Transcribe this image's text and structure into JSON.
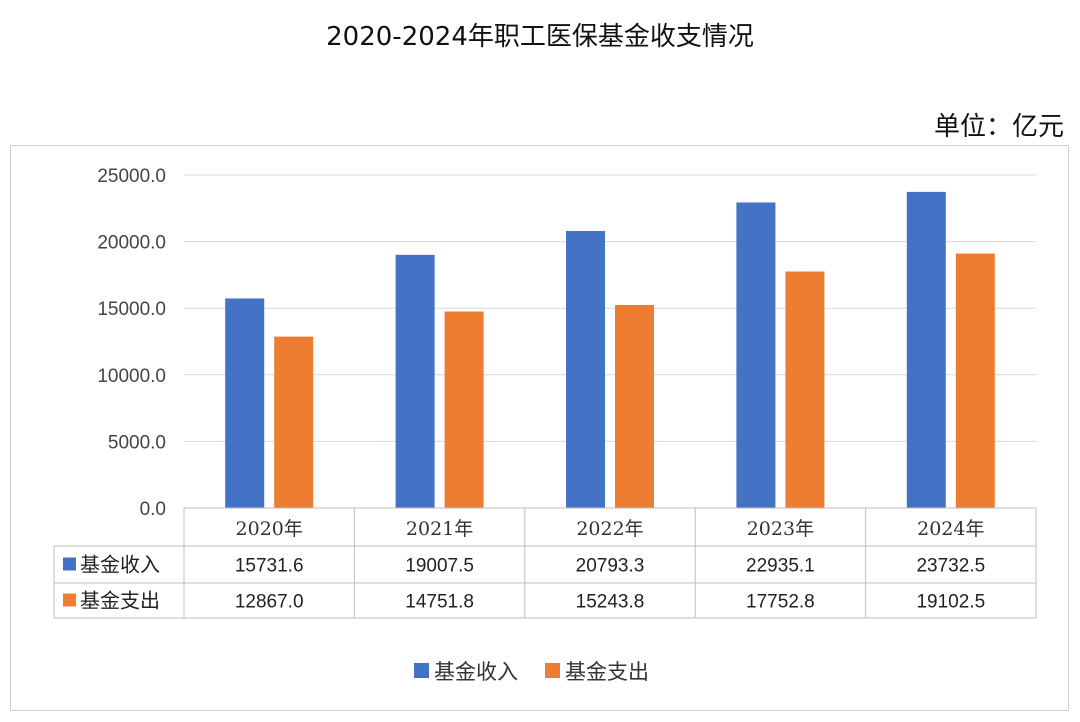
{
  "header": {
    "title": "2020-2024年职工医保基金收支情况",
    "unit": "单位：亿元"
  },
  "chart_data": {
    "type": "bar",
    "title": "2020-2024年职工医保基金收支情况",
    "categories": [
      "2020年",
      "2021年",
      "2022年",
      "2023年",
      "2024年"
    ],
    "series": [
      {
        "name": "基金收入",
        "color": "#4472c4",
        "values": [
          15731.6,
          19007.5,
          20793.3,
          22935.1,
          23732.5
        ]
      },
      {
        "name": "基金支出",
        "color": "#ed7d31",
        "values": [
          12867.0,
          14751.8,
          15243.8,
          17752.8,
          19102.5
        ]
      }
    ],
    "ylim": [
      0,
      25000
    ],
    "yticks": [
      0,
      5000,
      10000,
      15000,
      20000,
      25000
    ],
    "ytick_labels": [
      "0.0",
      "5000.0",
      "10000.0",
      "15000.0",
      "20000.0",
      "25000.0"
    ],
    "data_table": true,
    "legend": "bottom",
    "grid": true
  }
}
